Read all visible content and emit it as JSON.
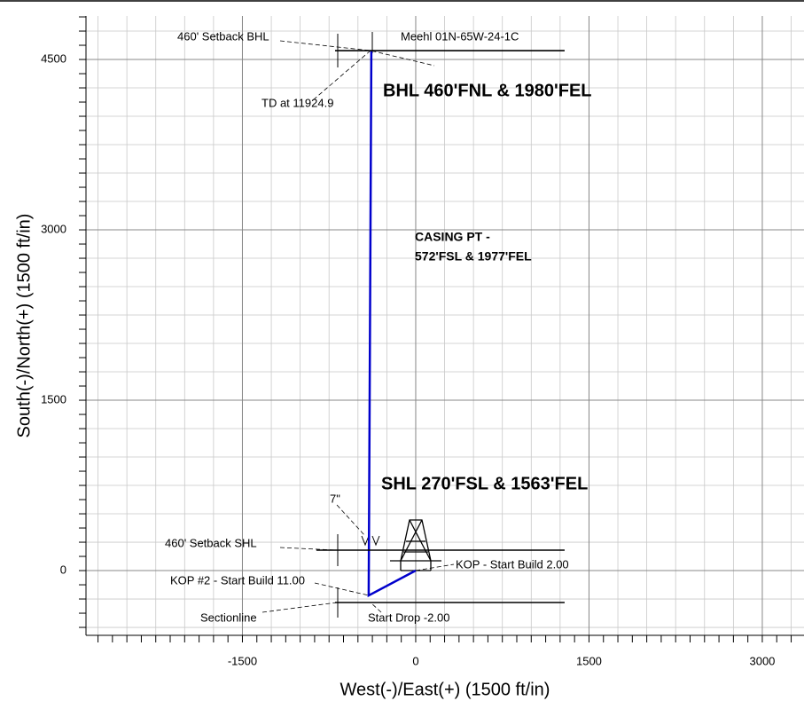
{
  "chart_data": {
    "type": "line",
    "x_label": "West(-)/East(+) (1500 ft/in)",
    "y_label": "South(-)/North(+) (1500 ft/in)",
    "xlim": [
      -2854,
      3361
    ],
    "ylim": [
      -570,
      4883
    ],
    "xticks": [
      -1500,
      0,
      1500,
      3000
    ],
    "yticks": [
      0,
      1500,
      3000,
      4500
    ],
    "grid": true,
    "series": [
      {
        "color": "#0000cc",
        "x": [
          0,
          -407,
          -384
        ],
        "values": [
          0,
          -219,
          4578
        ]
      },
      {
        "color": "#000000",
        "x": [
          -698,
          1289
        ],
        "values": [
          4578,
          4578
        ]
      },
      {
        "color": "#000000",
        "x": [
          -860,
          1289
        ],
        "values": [
          180,
          180
        ]
      },
      {
        "color": "#000000",
        "x": [
          -698,
          1289
        ],
        "values": [
          -281,
          -281
        ]
      }
    ],
    "annotations": [
      "460' Setback BHL",
      "Meehl 01N-65W-24-1C",
      "TD at 11924.9",
      "BHL 460'FNL & 1980'FEL",
      "CASING PT -",
      "572'FSL & 1977'FEL",
      "SHL 270'FSL & 1563'FEL",
      "7\"",
      "460' Setback SHL",
      "KOP - Start Build 2.00",
      "KOP #2 - Start Build 11.00",
      "Sectionline",
      "Start Drop -2.00"
    ]
  }
}
